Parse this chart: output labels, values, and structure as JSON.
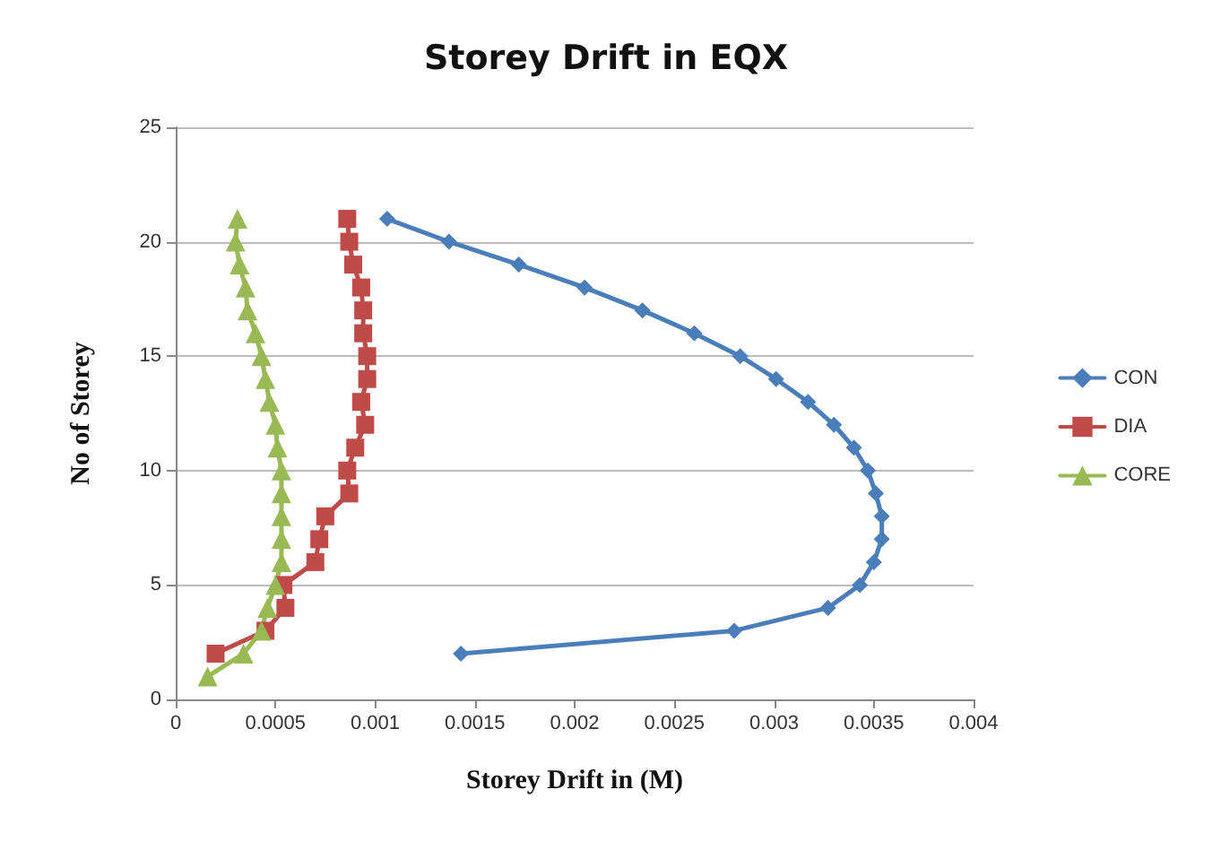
{
  "chart_data": {
    "type": "line",
    "title": "Storey Drift in EQX",
    "xlabel": "Storey Drift in (M)",
    "ylabel": "No of Storey",
    "xlim": [
      0,
      0.004
    ],
    "xticks": [
      0,
      0.0005,
      0.001,
      0.0015,
      0.002,
      0.0025,
      0.003,
      0.0035,
      0.004
    ],
    "ylim": [
      0,
      25
    ],
    "yticks": [
      0,
      5,
      10,
      15,
      20,
      25
    ],
    "grid": "y",
    "legend": "right",
    "series": [
      {
        "name": "CON",
        "color": "#4a7ebb",
        "marker": "diamond",
        "x": [
          0.00143,
          0.0028,
          0.00327,
          0.00343,
          0.0035,
          0.00354,
          0.00354,
          0.00351,
          0.00347,
          0.0034,
          0.0033,
          0.00317,
          0.00301,
          0.00283,
          0.0026,
          0.00234,
          0.00205,
          0.00172,
          0.00137,
          0.00106
        ],
        "values": [
          2,
          3,
          4,
          5,
          6,
          7,
          8,
          9,
          10,
          11,
          12,
          13,
          14,
          15,
          16,
          17,
          18,
          19,
          20,
          21
        ]
      },
      {
        "name": "DIA",
        "color": "#be4b48",
        "marker": "square",
        "x": [
          0.0002,
          0.00045,
          0.00055,
          0.00054,
          0.0007,
          0.00072,
          0.00075,
          0.00087,
          0.00086,
          0.0009,
          0.00095,
          0.00093,
          0.00096,
          0.00096,
          0.00094,
          0.00094,
          0.00093,
          0.00089,
          0.00087,
          0.00086
        ],
        "values": [
          2,
          3,
          4,
          5,
          6,
          7,
          8,
          9,
          10,
          11,
          12,
          13,
          14,
          15,
          16,
          17,
          18,
          19,
          20,
          21
        ]
      },
      {
        "name": "CORE",
        "color": "#98b954",
        "marker": "triangle",
        "x": [
          0.00016,
          0.00034,
          0.00043,
          0.00046,
          0.0005,
          0.00053,
          0.00053,
          0.00053,
          0.00053,
          0.00053,
          0.00051,
          0.0005,
          0.00047,
          0.00045,
          0.00043,
          0.0004,
          0.00036,
          0.00035,
          0.00032,
          0.0003,
          0.00031
        ],
        "values": [
          1,
          2,
          3,
          4,
          5,
          6,
          7,
          8,
          9,
          10,
          11,
          12,
          13,
          14,
          15,
          16,
          17,
          18,
          19,
          20,
          21
        ]
      }
    ]
  }
}
